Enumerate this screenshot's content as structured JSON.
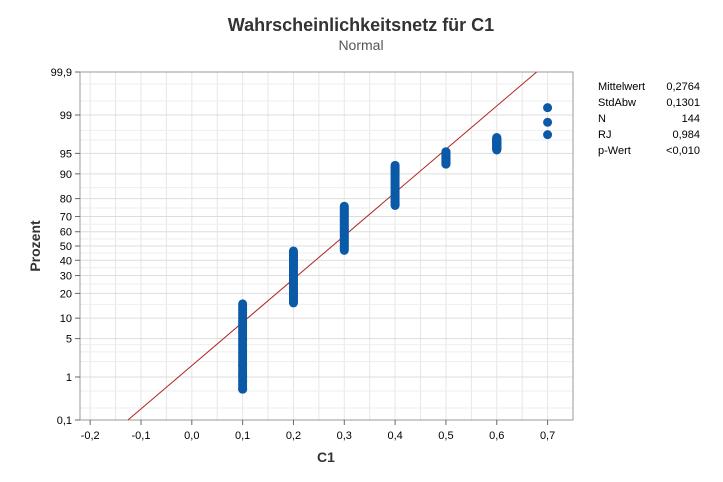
{
  "chart_data": {
    "type": "scatter",
    "title": "Wahrscheinlichkeitsnetz für C1",
    "subtitle": "Normal",
    "xlabel": "C1",
    "ylabel": "Prozent",
    "y_scale": "normal-probability",
    "xlim": [
      -0.22,
      0.75
    ],
    "ylim": [
      0.1,
      99.9
    ],
    "x_ticks": [
      "-0,2",
      "-0,1",
      "0,0",
      "0,1",
      "0,2",
      "0,3",
      "0,4",
      "0,5",
      "0,6",
      "0,7"
    ],
    "x_tick_values": [
      -0.2,
      -0.1,
      0.0,
      0.1,
      0.2,
      0.3,
      0.4,
      0.5,
      0.6,
      0.7
    ],
    "y_ticks": [
      "0,1",
      "1",
      "5",
      "10",
      "20",
      "30",
      "40",
      "50",
      "60",
      "70",
      "80",
      "90",
      "95",
      "99",
      "99,9"
    ],
    "y_tick_values": [
      0.1,
      1,
      5,
      10,
      20,
      30,
      40,
      50,
      60,
      70,
      80,
      90,
      95,
      99,
      99.9
    ],
    "grid": true,
    "fit_line": {
      "mean": 0.2764,
      "sd": 0.1301,
      "color": "#b22222"
    },
    "point_color": "#0b5aa8",
    "series": [
      {
        "x": 0.1,
        "y_range": [
          0.55,
          15.2
        ],
        "extra_y": [
          0.55,
          1.1,
          1.7
        ]
      },
      {
        "x": 0.2,
        "y_range": [
          15.6,
          46.5
        ]
      },
      {
        "x": 0.3,
        "y_range": [
          46.9,
          76.0
        ]
      },
      {
        "x": 0.4,
        "y_range": [
          76.4,
          92.4
        ]
      },
      {
        "x": 0.5,
        "y_range": [
          92.7,
          95.3
        ]
      },
      {
        "x": 0.6,
        "y_range": [
          95.6,
          97.3
        ]
      },
      {
        "x": 0.7,
        "y_values": [
          97.6,
          98.6,
          99.3
        ]
      }
    ]
  },
  "stats": [
    {
      "label": "Mittelwert",
      "value": "0,2764"
    },
    {
      "label": "StdAbw",
      "value": "0,1301"
    },
    {
      "label": "N",
      "value": "144"
    },
    {
      "label": "RJ",
      "value": "0,984"
    },
    {
      "label": "p-Wert",
      "value": "<0,010"
    }
  ]
}
